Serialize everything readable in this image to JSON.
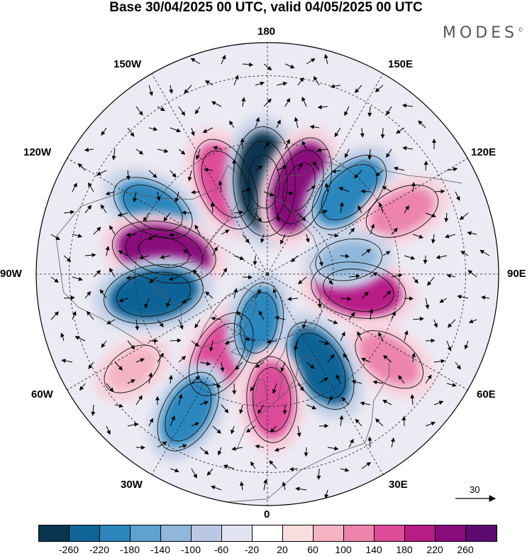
{
  "title": "Base 30/04/2025 00 UTC, valid 04/05/2025 00 UTC",
  "brand": "MODES",
  "brand_mark": "©",
  "longitude_labels": {
    "lon_180": "180",
    "lon_150e": "150E",
    "lon_120e": "120E",
    "lon_90e": "90E",
    "lon_60e": "60E",
    "lon_30e": "30E",
    "lon_0": "0",
    "lon_30w": "30W",
    "lon_60w": "60W",
    "lon_90w": "90W",
    "lon_120w": "120W",
    "lon_150w": "150W"
  },
  "reference_vector": {
    "label": "30"
  },
  "colorbar": {
    "colors": [
      "#08344f",
      "#0f6496",
      "#2c86bd",
      "#5ea2ce",
      "#8fb7da",
      "#bcc8e3",
      "#e3e4f1",
      "#ffffff",
      "#f9dede",
      "#f3b3c3",
      "#ec84ac",
      "#dd4c98",
      "#b81d86",
      "#8a0b7c",
      "#5d0a70"
    ],
    "ticks": [
      "-260",
      "-220",
      "-180",
      "-140",
      "-100",
      "-60",
      "-20",
      "20",
      "60",
      "100",
      "140",
      "180",
      "220",
      "260"
    ]
  },
  "anomaly_centers": [
    {
      "lon": -155,
      "lat": 60,
      "value": 200,
      "color": "#dd4c98"
    },
    {
      "lon": -178,
      "lat": 62,
      "value": -260,
      "color": "#08344f"
    },
    {
      "lon": 160,
      "lat": 62,
      "value": 230,
      "color": "#8a0b7c"
    },
    {
      "lon": 135,
      "lat": 55,
      "value": -180,
      "color": "#2c86bd"
    },
    {
      "lon": 115,
      "lat": 45,
      "value": 120,
      "color": "#ec84ac"
    },
    {
      "lon": -120,
      "lat": 50,
      "value": -160,
      "color": "#2c86bd"
    },
    {
      "lon": -102,
      "lat": 58,
      "value": 240,
      "color": "#8a0b7c"
    },
    {
      "lon": -80,
      "lat": 55,
      "value": -220,
      "color": "#0f6496"
    },
    {
      "lon": 80,
      "lat": 62,
      "value": 200,
      "color": "#b81d86"
    },
    {
      "lon": 100,
      "lat": 65,
      "value": -80,
      "color": "#8fb7da"
    },
    {
      "lon": 55,
      "lat": 45,
      "value": 120,
      "color": "#ec84ac"
    },
    {
      "lon": -30,
      "lat": 62,
      "value": 180,
      "color": "#dd4c98"
    },
    {
      "lon": -10,
      "lat": 75,
      "value": -140,
      "color": "#2c86bd"
    },
    {
      "lon": 30,
      "lat": 58,
      "value": -200,
      "color": "#0f6496"
    },
    {
      "lon": 2,
      "lat": 52,
      "value": 160,
      "color": "#dd4c98"
    },
    {
      "lon": -30,
      "lat": 42,
      "value": -160,
      "color": "#2c86bd"
    },
    {
      "lon": -55,
      "lat": 40,
      "value": 60,
      "color": "#f3b3c3"
    }
  ]
}
